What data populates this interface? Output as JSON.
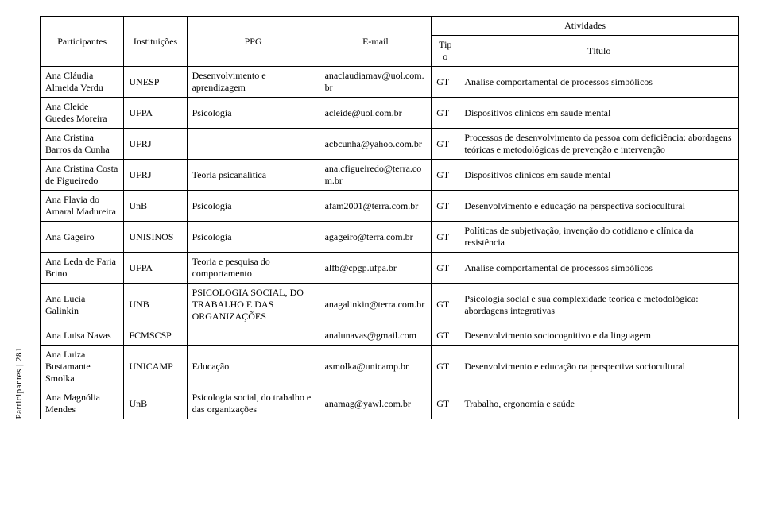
{
  "side_label": "Participantes | 281",
  "header": {
    "participantes": "Participantes",
    "instituicoes": "Instituições",
    "ppg": "PPG",
    "email": "E-mail",
    "atividades": "Atividades",
    "tipo": "Tipo",
    "titulo": "Título"
  },
  "rows": [
    {
      "participante": "Ana Cláudia Almeida Verdu",
      "instituicao": "UNESP",
      "ppg": "Desenvolvimento e aprendizagem",
      "email": "anaclaudiamav@uol.com.br",
      "tipo": "GT",
      "titulo": "Análise comportamental de processos simbólicos"
    },
    {
      "participante": "Ana Cleide Guedes Moreira",
      "instituicao": "UFPA",
      "ppg": "Psicologia",
      "email": "acleide@uol.com.br",
      "tipo": "GT",
      "titulo": "Dispositivos clínicos em saúde mental"
    },
    {
      "participante": "Ana Cristina Barros da Cunha",
      "instituicao": "UFRJ",
      "ppg": "",
      "email": "acbcunha@yahoo.com.br",
      "tipo": "GT",
      "titulo": "Processos de desenvolvimento da pessoa com deficiência: abordagens teóricas e metodológicas de prevenção e intervenção"
    },
    {
      "participante": "Ana Cristina Costa de Figueiredo",
      "instituicao": "UFRJ",
      "ppg": "Teoria psicanalítica",
      "email": "ana.cfigueiredo@terra.com.br",
      "tipo": "GT",
      "titulo": "Dispositivos clínicos em saúde mental"
    },
    {
      "participante": "Ana Flavia do Amaral Madureira",
      "instituicao": "UnB",
      "ppg": "Psicologia",
      "email": "afam2001@terra.com.br",
      "tipo": "GT",
      "titulo": "Desenvolvimento e educação na perspectiva sociocultural"
    },
    {
      "participante": "Ana Gageiro",
      "instituicao": "UNISINOS",
      "ppg": "Psicologia",
      "email": "agageiro@terra.com.br",
      "tipo": "GT",
      "titulo": "Políticas de subjetivação, invenção do cotidiano e clínica da resistência"
    },
    {
      "participante": "Ana Leda de Faria Brino",
      "instituicao": "UFPA",
      "ppg": "Teoria e pesquisa do comportamento",
      "email": "alfb@cpgp.ufpa.br",
      "tipo": "GT",
      "titulo": "Análise comportamental de processos simbólicos"
    },
    {
      "participante": "Ana Lucia Galinkin",
      "instituicao": "UNB",
      "ppg": "PSICOLOGIA SOCIAL, DO TRABALHO E DAS ORGANIZAÇÕES",
      "email": "anagalinkin@terra.com.br",
      "tipo": "GT",
      "titulo": "Psicologia social e sua complexidade teórica e metodológica: abordagens integrativas"
    },
    {
      "participante": "Ana Luisa Navas",
      "instituicao": "FCMSCSP",
      "ppg": "",
      "email": "analunavas@gmail.com",
      "tipo": "GT",
      "titulo": "Desenvolvimento sociocognitivo e da linguagem"
    },
    {
      "participante": "Ana Luiza Bustamante Smolka",
      "instituicao": "UNICAMP",
      "ppg": "Educação",
      "email": "asmolka@unicamp.br",
      "tipo": "GT",
      "titulo": "Desenvolvimento e educação na perspectiva sociocultural"
    },
    {
      "participante": "Ana Magnólia Mendes",
      "instituicao": "UnB",
      "ppg": "Psicologia social, do trabalho e das organizações",
      "email": "anamag@yawl.com.br",
      "tipo": "GT",
      "titulo": "Trabalho, ergonomia e saúde"
    }
  ]
}
